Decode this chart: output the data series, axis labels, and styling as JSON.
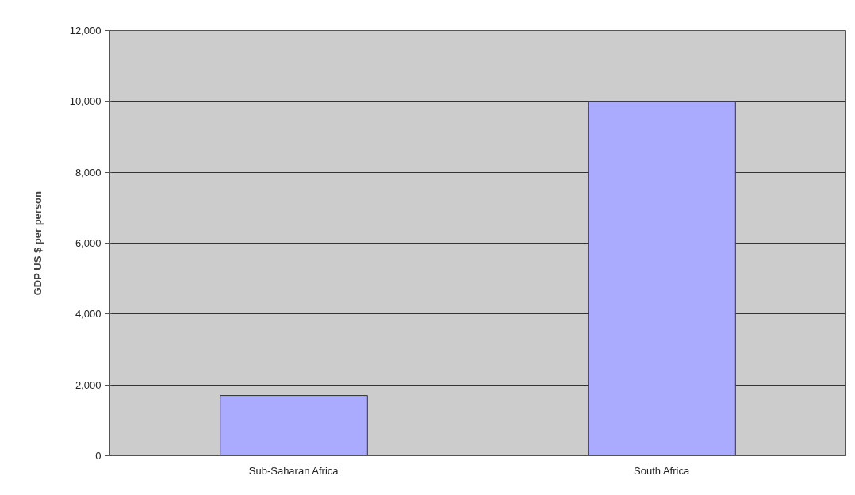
{
  "chart_data": {
    "type": "bar",
    "ylabel": "GDP US $ per person",
    "categories": [
      "Sub-Saharan Africa",
      "South Africa"
    ],
    "values": [
      1700,
      10000
    ],
    "color": "#aaaaff",
    "ylim": [
      0,
      12000
    ],
    "yticks": [
      {
        "value": 0,
        "label": "0"
      },
      {
        "value": 2000,
        "label": "2,000"
      },
      {
        "value": 4000,
        "label": "4,000"
      },
      {
        "value": 6000,
        "label": "6,000"
      },
      {
        "value": 8000,
        "label": "8,000"
      },
      {
        "value": 10000,
        "label": "10,000"
      },
      {
        "value": 12000,
        "label": "12,000"
      }
    ],
    "grid": "y"
  }
}
